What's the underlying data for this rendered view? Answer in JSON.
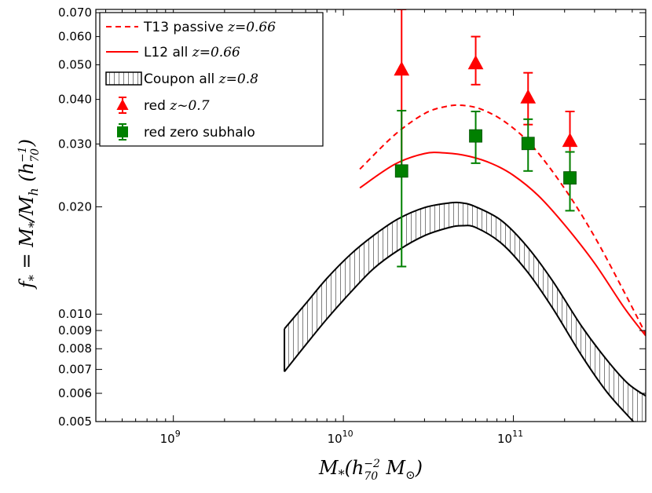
{
  "chart_data": {
    "type": "line",
    "xlabel": "M_*(h_70^-2 M_⊙)",
    "ylabel": "f_* = M_*/M_h (h_70^-1)",
    "xscale": "log",
    "yscale": "log",
    "xlim": [
      350000000,
      600000000000
    ],
    "ylim": [
      0.005,
      0.0715
    ],
    "grid": false,
    "legend_position": "top-left",
    "x_ticks": [
      {
        "value": 1000000000,
        "label": "10^9"
      },
      {
        "value": 10000000000,
        "label": "10^10"
      },
      {
        "value": 100000000000,
        "label": "10^11"
      }
    ],
    "y_ticks": [
      {
        "value": 0.005,
        "label": "0.005"
      },
      {
        "value": 0.006,
        "label": "0.006"
      },
      {
        "value": 0.007,
        "label": "0.007"
      },
      {
        "value": 0.008,
        "label": "0.008"
      },
      {
        "value": 0.009,
        "label": "0.009"
      },
      {
        "value": 0.01,
        "label": "0.010"
      },
      {
        "value": 0.02,
        "label": "0.020"
      },
      {
        "value": 0.03,
        "label": "0.030"
      },
      {
        "value": 0.04,
        "label": "0.040"
      },
      {
        "value": 0.05,
        "label": "0.050"
      },
      {
        "value": 0.06,
        "label": "0.060"
      },
      {
        "value": 0.07,
        "label": "0.070"
      }
    ],
    "series": [
      {
        "name": "T13 passive z=0.66",
        "kind": "line",
        "style": "dashed",
        "color": "#ff0000",
        "x": [
          12500000000,
          20000000000,
          30000000000,
          40000000000,
          50000000000,
          65000000000,
          90000000000,
          130000000000,
          200000000000,
          300000000000,
          450000000000,
          600000000000
        ],
        "y": [
          0.0255,
          0.0318,
          0.0365,
          0.0382,
          0.0385,
          0.0375,
          0.0345,
          0.0295,
          0.0225,
          0.0165,
          0.0115,
          0.0088
        ]
      },
      {
        "name": "L12 all z=0.66",
        "kind": "line",
        "style": "solid",
        "color": "#ff0000",
        "x": [
          12500000000,
          20000000000,
          30000000000,
          40000000000,
          55000000000,
          75000000000,
          100000000000,
          140000000000,
          200000000000,
          300000000000,
          450000000000,
          600000000000
        ],
        "y": [
          0.0226,
          0.0263,
          0.0282,
          0.0283,
          0.0277,
          0.0264,
          0.0245,
          0.0215,
          0.0178,
          0.0139,
          0.0104,
          0.0087
        ]
      },
      {
        "name": "Coupon all z=0.8",
        "kind": "band",
        "color": "#000000",
        "x": [
          4500000000,
          6000000000,
          8000000000,
          11000000000,
          15000000000,
          21000000000,
          30000000000,
          42000000000,
          50000000000,
          60000000000,
          85000000000,
          120000000000,
          170000000000,
          250000000000,
          350000000000,
          470000000000,
          600000000000
        ],
        "y_upper": [
          0.0091,
          0.0107,
          0.0126,
          0.0147,
          0.0166,
          0.0185,
          0.0199,
          0.0205,
          0.0205,
          0.02,
          0.0183,
          0.0155,
          0.0124,
          0.0093,
          0.0075,
          0.0064,
          0.0059
        ],
        "y_lower": [
          0.0069,
          0.0082,
          0.0097,
          0.0115,
          0.0134,
          0.0151,
          0.0166,
          0.0175,
          0.0177,
          0.0175,
          0.0158,
          0.0132,
          0.0104,
          0.0077,
          0.0061,
          0.0052,
          0.0046
        ]
      },
      {
        "name": "red z~0.7",
        "kind": "points",
        "marker": "triangle",
        "color": "#ff0000",
        "x": [
          22000000000,
          60000000000,
          122000000000,
          215000000000
        ],
        "y": [
          0.0485,
          0.0505,
          0.0405,
          0.0306
        ],
        "y_err_low": [
          0.0485,
          0.0505,
          0.0405,
          0.0306
        ],
        "y_err_high": [
          0.0715,
          0.06,
          0.0475,
          0.037
        ],
        "y_err_min": [
          0.025,
          0.044,
          0.034,
          0.025
        ]
      },
      {
        "name": "red zero subhalo",
        "kind": "points",
        "marker": "square",
        "color": "#008000",
        "x": [
          22000000000,
          60000000000,
          122000000000,
          215000000000
        ],
        "y": [
          0.0252,
          0.0316,
          0.0301,
          0.0241
        ],
        "y_err_min": [
          0.0136,
          0.0265,
          0.0252,
          0.0195
        ],
        "y_err_high": [
          0.0372,
          0.037,
          0.0352,
          0.0285
        ]
      }
    ]
  },
  "legend": {
    "items": [
      {
        "label": "T13 passive",
        "math": "z=0.66",
        "symbol": "dashed-line",
        "color": "#ff0000"
      },
      {
        "label": "L12 all",
        "math": "z=0.66",
        "symbol": "solid-line",
        "color": "#ff0000"
      },
      {
        "label": "Coupon all",
        "math": "z=0.8",
        "symbol": "hatched-patch",
        "color": "#000000"
      },
      {
        "label": "red",
        "math": "z~0.7",
        "symbol": "triangle",
        "color": "#ff0000"
      },
      {
        "label": "red zero subhalo",
        "math": "",
        "symbol": "square",
        "color": "#008000"
      }
    ]
  }
}
